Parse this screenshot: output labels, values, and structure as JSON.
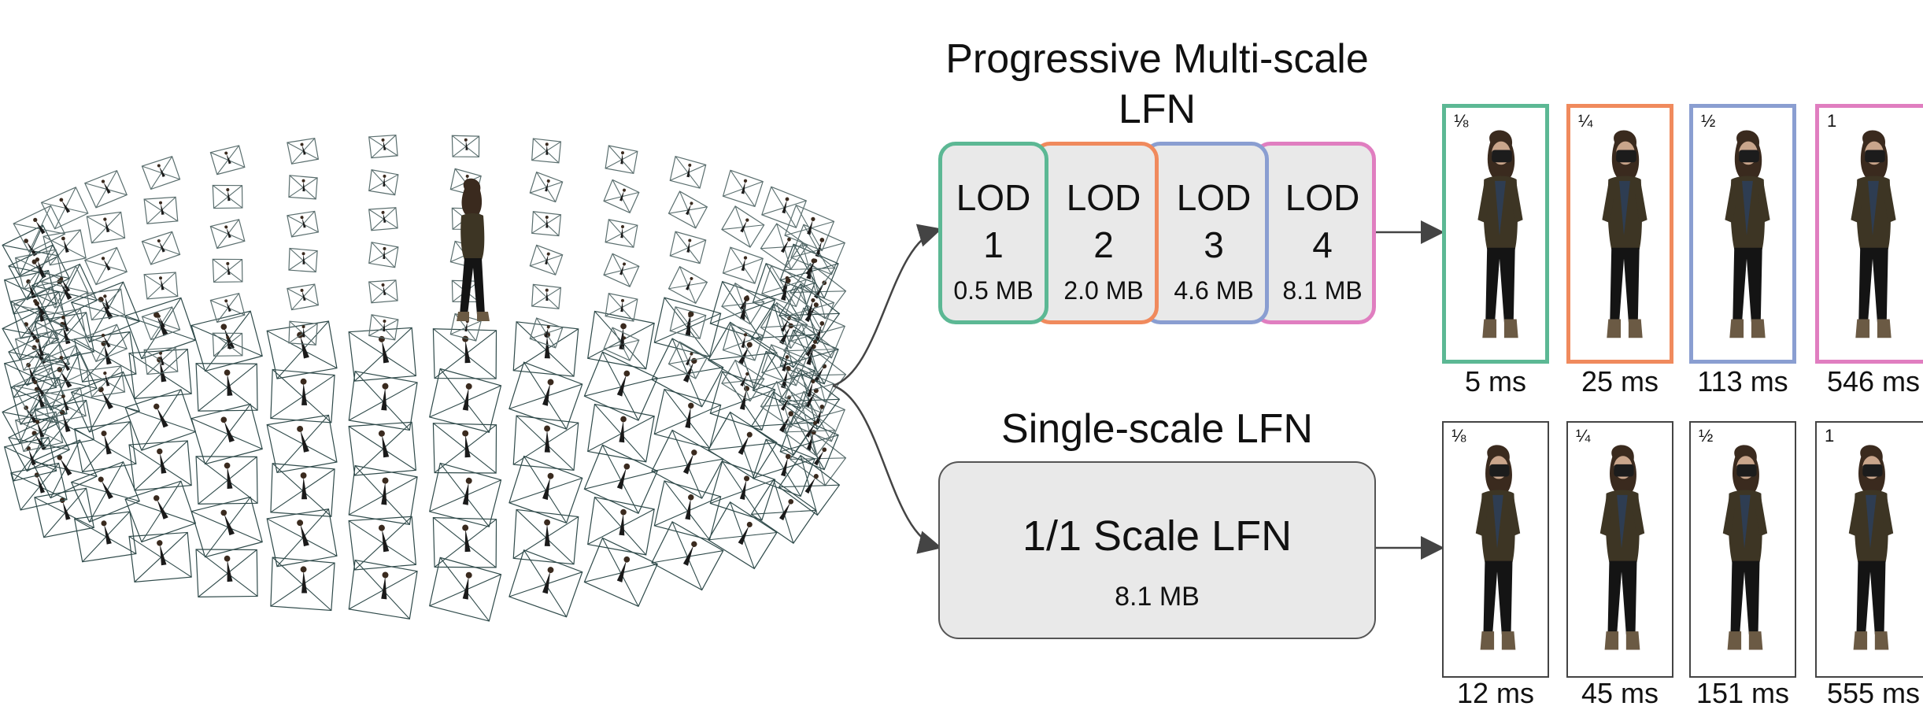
{
  "progressive": {
    "title_line1": "Progressive Multi-scale",
    "title_line2": "LFN",
    "lods": [
      {
        "label": "LOD",
        "num": "1",
        "size": "0.5 MB",
        "color": "#5cb894"
      },
      {
        "label": "LOD",
        "num": "2",
        "size": "2.0 MB",
        "color": "#f08a5d"
      },
      {
        "label": "LOD",
        "num": "3",
        "size": "4.6 MB",
        "color": "#8a9ed1"
      },
      {
        "label": "LOD",
        "num": "4",
        "size": "8.1 MB",
        "color": "#e07ec0"
      }
    ],
    "renders": [
      {
        "fraction": "⅛",
        "time": "5 ms",
        "color": "#5cb894"
      },
      {
        "fraction": "¼",
        "time": "25 ms",
        "color": "#f08a5d"
      },
      {
        "fraction": "½",
        "time": "113 ms",
        "color": "#8a9ed1"
      },
      {
        "fraction": "1",
        "time": "546 ms",
        "color": "#e07ec0"
      }
    ]
  },
  "single": {
    "title": "Single-scale LFN",
    "box_label": "1/1 Scale LFN",
    "box_size": "8.1 MB",
    "renders": [
      {
        "fraction": "⅛",
        "time": "12 ms"
      },
      {
        "fraction": "¼",
        "time": "45 ms"
      },
      {
        "fraction": "½",
        "time": "151 ms"
      },
      {
        "fraction": "1",
        "time": "555 ms"
      }
    ]
  }
}
